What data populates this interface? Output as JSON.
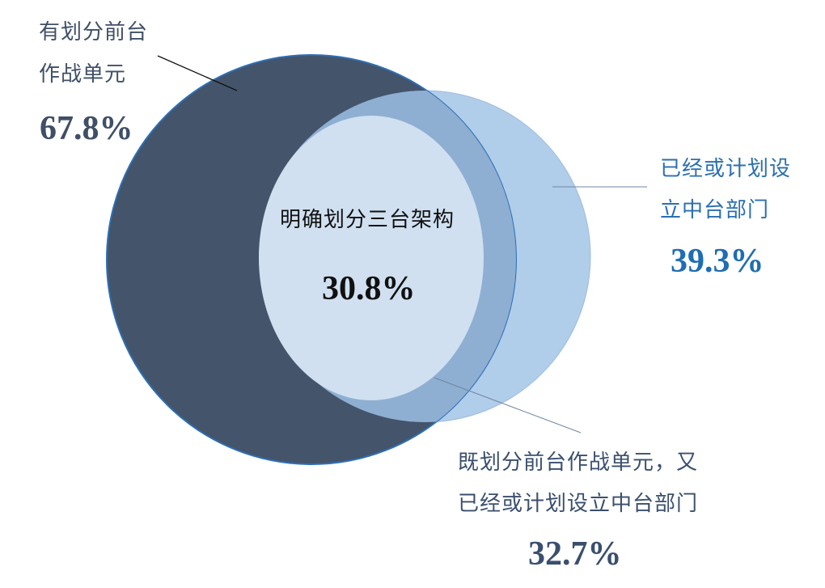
{
  "colors": {
    "set_a_fill": "#44546b",
    "set_b_fill": "#b0cdea",
    "overlap_fill": "#8eafd2",
    "inner_fill": "#d0e0f0",
    "leader_line": "#6f86a4"
  },
  "set_a": {
    "label_line1": "有划分前台",
    "label_line2": "作战单元",
    "percent": "67.8%"
  },
  "set_b": {
    "label_line1": "已经或计划设",
    "label_line2": "立中台部门",
    "percent": "39.3%"
  },
  "inner": {
    "label": "明确划分三台架构",
    "percent": "30.8%"
  },
  "overlap": {
    "label_line1": "既划分前台作战单元，又",
    "label_line2": "已经或计划设立中台部门",
    "percent": "32.7%"
  }
}
